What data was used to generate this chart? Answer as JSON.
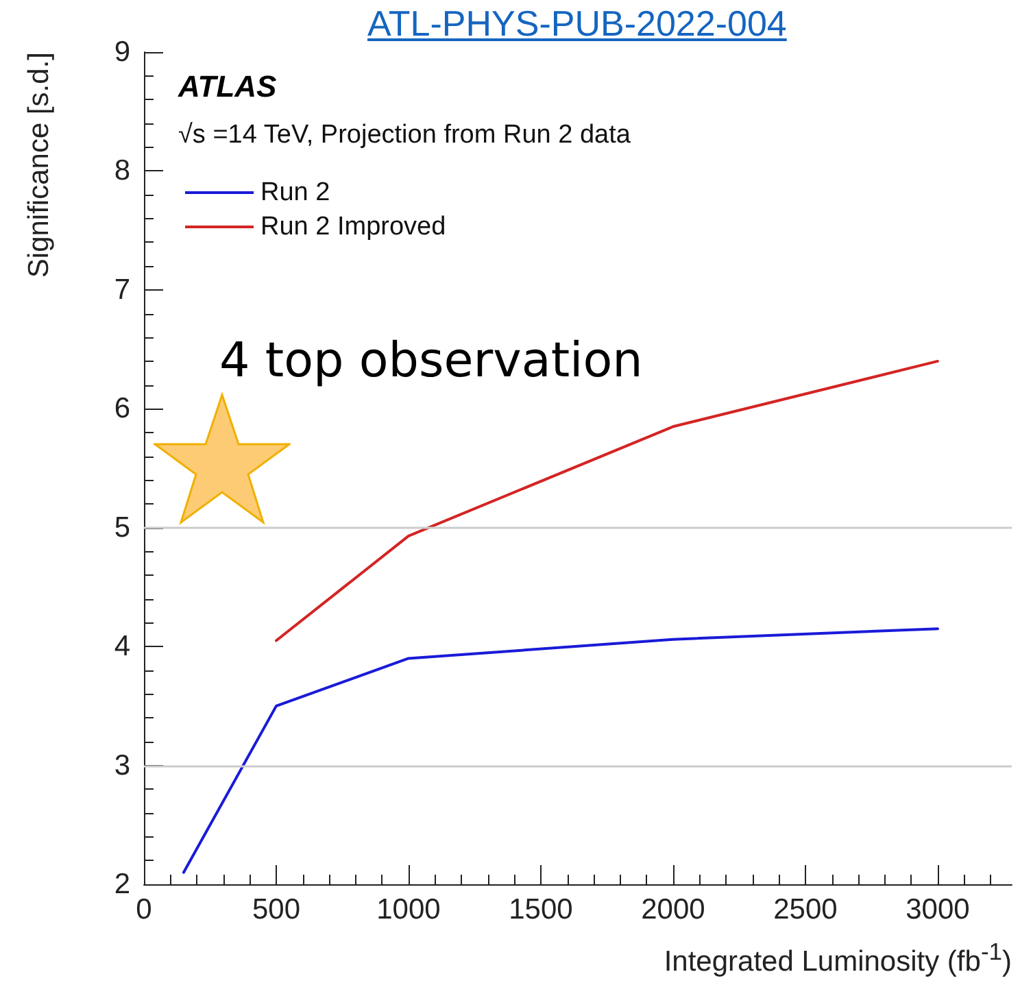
{
  "chart_data": {
    "type": "line",
    "xlabel": "Integrated Luminosity (fb$^{-1}$)",
    "ylabel": "Significance [s.d.]",
    "annotations": [
      "ATL-PHYS-PUB-2022-004",
      "ATLAS",
      "√s =14 TeV, Projection from Run 2 data",
      "4 top observation"
    ],
    "series": [
      {
        "name": "Run 2",
        "color": "#1a1ad8",
        "x": [
          150,
          500,
          1000,
          2000,
          3000
        ],
        "values": [
          2.1,
          3.5,
          3.9,
          4.06,
          4.15
        ]
      },
      {
        "name": "Run 2 Improved",
        "color": "#d42424",
        "x": [
          500,
          1000,
          2000,
          3000
        ],
        "values": [
          4.05,
          4.93,
          5.85,
          6.4
        ]
      }
    ],
    "xlim": [
      0,
      3280
    ],
    "xticks": [
      0,
      500,
      1000,
      1500,
      2000,
      2500,
      3000
    ],
    "ylim": [
      2,
      9
    ],
    "yticks": [
      2,
      3,
      4,
      5,
      6,
      7,
      8,
      9
    ],
    "ref_lines": [
      {
        "axis": "y",
        "value": 3,
        "color": "#cccccc"
      },
      {
        "axis": "y",
        "value": 5,
        "color": "#cccccc"
      }
    ],
    "grid": false,
    "legend": "top left",
    "marker": "none",
    "line_style": "solid"
  }
}
